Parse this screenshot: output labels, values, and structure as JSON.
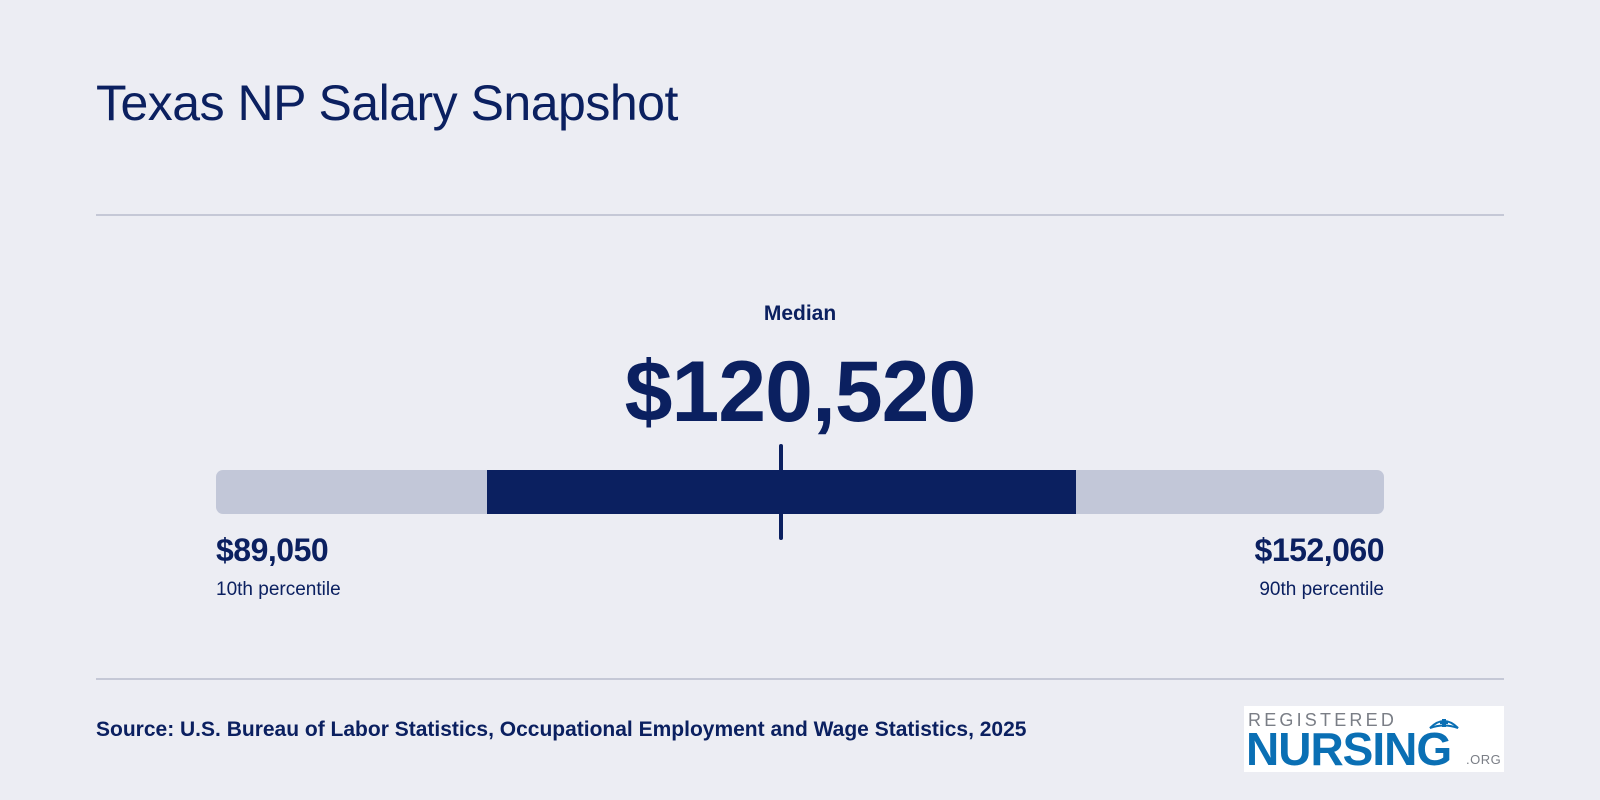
{
  "title": "Texas NP Salary Snapshot",
  "chart_data": {
    "type": "range",
    "median_label": "Median",
    "median": 120520,
    "median_display": "$120,520",
    "p10": 89050,
    "p10_display": "$89,050",
    "p10_label": "10th percentile",
    "p90": 152060,
    "p90_display": "$152,060",
    "p90_label": "90th percentile",
    "scale_min": 60000,
    "scale_max": 185000
  },
  "source": "Source: U.S. Bureau of Labor Statistics, Occupational Employment and Wage Statistics, 2025",
  "logo": {
    "top": "REGISTERED",
    "main": "NURSING",
    "suffix": ".ORG"
  },
  "colors": {
    "background": "#ecedf3",
    "navy": "#0b2060",
    "track": "#c2c7d8",
    "logo_blue": "#0a6fb4"
  }
}
